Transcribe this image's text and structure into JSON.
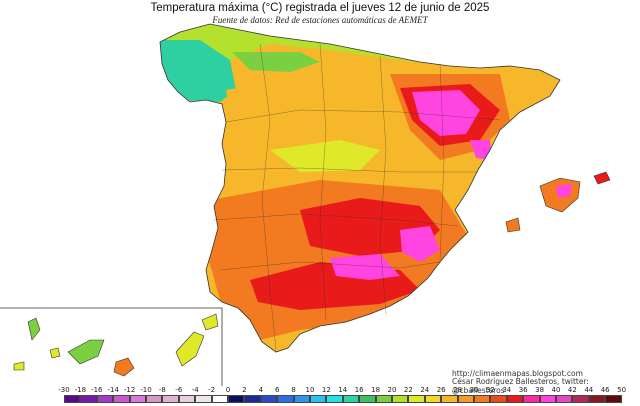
{
  "title": "Temperatura máxima (°C) registrada el jueves 12 de junio de 2025",
  "subtitle": "Fuente de datos: Red de estaciones automáticas de AEMET",
  "credits": {
    "url": "http://climaenmapas.blogspot.com",
    "author": "César Rodríguez Ballesteros, twitter: @cballesteros"
  },
  "legend": {
    "ticks": [
      "-30",
      "-18",
      "-16",
      "-14",
      "-12",
      "-10",
      "-8",
      "-6",
      "-4",
      "-2",
      "0",
      "2",
      "4",
      "6",
      "8",
      "10",
      "12",
      "14",
      "16",
      "18",
      "20",
      "22",
      "24",
      "26",
      "28",
      "30",
      "32",
      "34",
      "36",
      "38",
      "40",
      "42",
      "44",
      "46",
      "50"
    ],
    "colors": [
      "#5a0a8a",
      "#7a1aa8",
      "#a23cc6",
      "#c85ad6",
      "#d97ad8",
      "#d898c4",
      "#e0b4d2",
      "#e8cee0",
      "#f0e4ee",
      "#ffffff",
      "#0a1060",
      "#1a2a98",
      "#2b4ac8",
      "#2e6ee0",
      "#2f94f0",
      "#2cc0f4",
      "#26e2e8",
      "#30d2a8",
      "#40c060",
      "#7ad040",
      "#b4e02e",
      "#e0e82a",
      "#f4d82a",
      "#f6b82a",
      "#f69a2a",
      "#f27a20",
      "#ee4a1e",
      "#e81a1a",
      "#ff2aa0",
      "#ff44e0",
      "#e04ac8",
      "#b02a5a",
      "#8a1a1a",
      "#600a0a"
    ]
  },
  "colors": {
    "sea": "#ffffff",
    "north_coast_cool": "#2ecfa0",
    "cool": "#b4e02e",
    "warm": "#f6b82a",
    "hot": "#f27a20",
    "very_hot": "#e81a1a",
    "extreme": "#ff44e0",
    "borders": "#333333"
  }
}
